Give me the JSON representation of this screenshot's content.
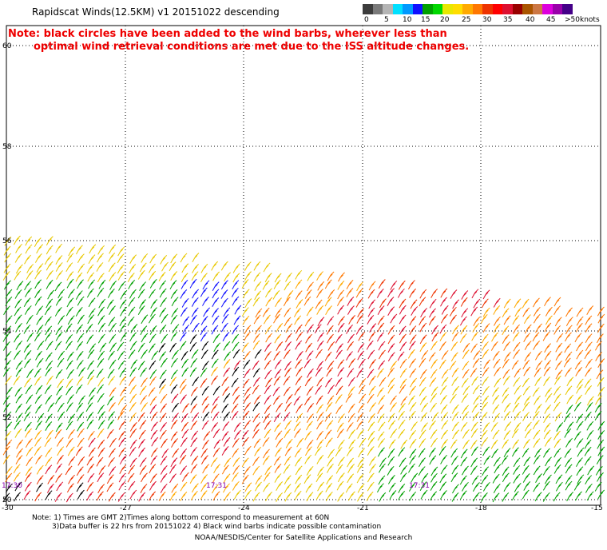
{
  "header": {
    "title": "Rapidscat Winds(12.5KM) v1 20151022 descending",
    "note_line1": "Note: black circles have been added to the wind barbs, wherever less than",
    "note_line2": "optimal wind retrieval conditions are met due to the ISS altitude changes."
  },
  "legend": {
    "labels": [
      "0",
      "5",
      "10",
      "15",
      "20",
      "25",
      "30",
      "35",
      "40",
      "45",
      ">50"
    ],
    "unit": "knots",
    "colors": [
      "#3c3c3c",
      "#7a7a7a",
      "#b4b4b4",
      "#00e0ff",
      "#0099ff",
      "#1010ff",
      "#00a000",
      "#00d800",
      "#e8e800",
      "#ffdd00",
      "#ffaa00",
      "#ff7700",
      "#ee3300",
      "#ff0000",
      "#dd1030",
      "#990000",
      "#aa5500",
      "#cc7744",
      "#dd00dd",
      "#9900aa",
      "#440088"
    ]
  },
  "map": {
    "lat_labels": [
      "60",
      "58",
      "56",
      "54",
      "52",
      "50"
    ],
    "lon_labels": [
      "-30",
      "-27",
      "-24",
      "-21",
      "-18",
      "-15"
    ],
    "time_labels": [
      "17:30",
      "17:31",
      "17:31"
    ],
    "lat_range": [
      50,
      60
    ],
    "lon_range": [
      -30,
      -15
    ]
  },
  "footer": {
    "line1": "Note: 1) Times are GMT 2)Times along bottom correspond to measurement at 60N",
    "line2": "3)Data buffer is 22 hrs from 20151022 4) Black wind barbs indicate possible contamination",
    "credit": "NOAA/NESDIS/Center for Satellite Applications and Research"
  }
}
